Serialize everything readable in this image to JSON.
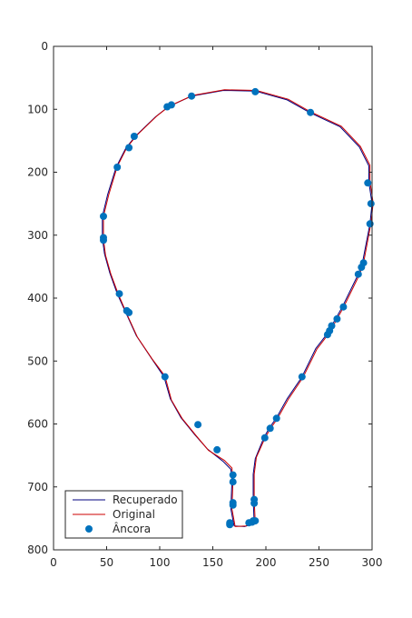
{
  "chart_data": {
    "type": "line",
    "title": "",
    "xlabel": "",
    "ylabel": "",
    "xlim": [
      0,
      300
    ],
    "ylim": [
      0,
      800
    ],
    "y_axis_reversed": true,
    "xticks": [
      0,
      50,
      100,
      150,
      200,
      250,
      300
    ],
    "yticks": [
      0,
      100,
      200,
      300,
      400,
      500,
      600,
      700,
      800
    ],
    "grid": false,
    "legend_position": "bottom-left",
    "colors": {
      "recuperado": "#00007f",
      "original": "#cc0000",
      "ancora": "#0072bd"
    },
    "series": [
      {
        "name": "Recuperado",
        "style": "line",
        "points": [
          [
            170,
            762
          ],
          [
            167,
            735
          ],
          [
            168,
            690
          ],
          [
            167,
            672
          ],
          [
            160,
            660
          ],
          [
            145,
            640
          ],
          [
            133,
            617
          ],
          [
            120,
            590
          ],
          [
            110,
            560
          ],
          [
            104,
            525
          ],
          [
            92,
            495
          ],
          [
            78,
            460
          ],
          [
            68,
            423
          ],
          [
            60,
            393
          ],
          [
            53,
            360
          ],
          [
            48,
            330
          ],
          [
            46,
            305
          ],
          [
            46,
            270
          ],
          [
            51,
            235
          ],
          [
            59,
            192
          ],
          [
            68,
            162
          ],
          [
            77,
            143
          ],
          [
            96,
            112
          ],
          [
            108,
            96
          ],
          [
            130,
            79
          ],
          [
            160,
            70
          ],
          [
            190,
            71
          ],
          [
            220,
            85
          ],
          [
            241,
            105
          ],
          [
            270,
            128
          ],
          [
            288,
            160
          ],
          [
            297,
            190
          ],
          [
            297,
            216
          ],
          [
            300,
            250
          ],
          [
            298,
            282
          ],
          [
            291,
            343
          ],
          [
            287,
            362
          ],
          [
            272,
            414
          ],
          [
            262,
            444
          ],
          [
            258,
            456
          ],
          [
            247,
            480
          ],
          [
            234,
            525
          ],
          [
            220,
            560
          ],
          [
            210,
            590
          ],
          [
            203,
            607
          ],
          [
            198,
            622
          ],
          [
            190,
            655
          ],
          [
            188,
            680
          ],
          [
            188,
            720
          ],
          [
            189,
            758
          ],
          [
            180,
            763
          ],
          [
            170,
            762
          ]
        ]
      },
      {
        "name": "Original",
        "style": "line",
        "points": [
          [
            171,
            763
          ],
          [
            168,
            735
          ],
          [
            169,
            690
          ],
          [
            168,
            670
          ],
          [
            161,
            658
          ],
          [
            146,
            642
          ],
          [
            134,
            618
          ],
          [
            121,
            591
          ],
          [
            111,
            562
          ],
          [
            105,
            524
          ],
          [
            93,
            497
          ],
          [
            79,
            462
          ],
          [
            69,
            425
          ],
          [
            61,
            394
          ],
          [
            54,
            362
          ],
          [
            49,
            332
          ],
          [
            47,
            306
          ],
          [
            47,
            270
          ],
          [
            52,
            236
          ],
          [
            60,
            191
          ],
          [
            69,
            161
          ],
          [
            78,
            142
          ],
          [
            97,
            111
          ],
          [
            109,
            95
          ],
          [
            131,
            78
          ],
          [
            161,
            69
          ],
          [
            191,
            70
          ],
          [
            221,
            84
          ],
          [
            242,
            104
          ],
          [
            271,
            127
          ],
          [
            289,
            159
          ],
          [
            298,
            189
          ],
          [
            298,
            215
          ],
          [
            301,
            249
          ],
          [
            299,
            281
          ],
          [
            292,
            344
          ],
          [
            288,
            363
          ],
          [
            273,
            415
          ],
          [
            263,
            445
          ],
          [
            259,
            457
          ],
          [
            248,
            481
          ],
          [
            235,
            526
          ],
          [
            221,
            561
          ],
          [
            211,
            591
          ],
          [
            204,
            608
          ],
          [
            199,
            623
          ],
          [
            191,
            653
          ],
          [
            189,
            680
          ],
          [
            189,
            720
          ],
          [
            190,
            757
          ],
          [
            181,
            762
          ],
          [
            171,
            763
          ]
        ]
      },
      {
        "name": "Âncora",
        "style": "markers",
        "points": [
          [
            107,
            96
          ],
          [
            111,
            93
          ],
          [
            130,
            79
          ],
          [
            190,
            72
          ],
          [
            242,
            105
          ],
          [
            76,
            143
          ],
          [
            71,
            161
          ],
          [
            60,
            192
          ],
          [
            47,
            270
          ],
          [
            47,
            304
          ],
          [
            47,
            308
          ],
          [
            62,
            393
          ],
          [
            69,
            420
          ],
          [
            71,
            423
          ],
          [
            105,
            525
          ],
          [
            136,
            601
          ],
          [
            154,
            641
          ],
          [
            296,
            217
          ],
          [
            299,
            250
          ],
          [
            298,
            282
          ],
          [
            292,
            344
          ],
          [
            290,
            351
          ],
          [
            287,
            362
          ],
          [
            273,
            414
          ],
          [
            267,
            433
          ],
          [
            262,
            444
          ],
          [
            260,
            452
          ],
          [
            258,
            458
          ],
          [
            234,
            525
          ],
          [
            210,
            591
          ],
          [
            204,
            607
          ],
          [
            199,
            622
          ],
          [
            169,
            681
          ],
          [
            169,
            692
          ],
          [
            169,
            725
          ],
          [
            169,
            729
          ],
          [
            166,
            757
          ],
          [
            166,
            760
          ],
          [
            184,
            757
          ],
          [
            187,
            756
          ],
          [
            188,
            754
          ],
          [
            190,
            754
          ],
          [
            189,
            720
          ],
          [
            189,
            726
          ]
        ]
      }
    ]
  }
}
